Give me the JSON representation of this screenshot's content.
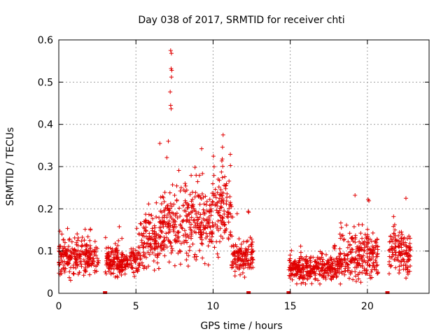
{
  "chart_data": {
    "type": "scatter",
    "title": "Day 038 of 2017, SRMTID for receiver chti",
    "xlabel": "GPS time / hours",
    "ylabel": "SRMTID / TECUs",
    "xlim": [
      0,
      24
    ],
    "ylim": [
      0,
      0.6
    ],
    "xticks": [
      "0",
      "5",
      "10",
      "15",
      "20"
    ],
    "yticks": [
      "0",
      "0.1",
      "0.2",
      "0.3",
      "0.4",
      "0.5",
      "0.6"
    ],
    "grid": true,
    "marker": "+",
    "color": "#e00000",
    "peak_points": [
      {
        "x": 7.25,
        "y": 0.575
      },
      {
        "x": 7.3,
        "y": 0.568
      },
      {
        "x": 7.28,
        "y": 0.532
      },
      {
        "x": 7.32,
        "y": 0.528
      },
      {
        "x": 7.3,
        "y": 0.512
      },
      {
        "x": 7.22,
        "y": 0.477
      },
      {
        "x": 7.25,
        "y": 0.445
      },
      {
        "x": 7.28,
        "y": 0.437
      },
      {
        "x": 10.65,
        "y": 0.375
      },
      {
        "x": 6.55,
        "y": 0.355
      },
      {
        "x": 7.1,
        "y": 0.36
      },
      {
        "x": 19.2,
        "y": 0.232
      },
      {
        "x": 20.05,
        "y": 0.222
      },
      {
        "x": 20.1,
        "y": 0.219
      },
      {
        "x": 22.5,
        "y": 0.225
      }
    ],
    "zero_markers": [
      3.0,
      12.3,
      14.9,
      21.3
    ],
    "segments": [
      {
        "start": 0.0,
        "end": 2.6,
        "base": 0.085,
        "spread": 0.03,
        "peak": 0.155
      },
      {
        "start": 3.0,
        "end": 5.2,
        "base": 0.075,
        "spread": 0.025,
        "peak": 0.16
      },
      {
        "start": 5.2,
        "end": 6.5,
        "base": 0.12,
        "spread": 0.045,
        "peak": 0.22
      },
      {
        "start": 6.5,
        "end": 8.0,
        "base": 0.16,
        "spread": 0.06,
        "peak": 0.33
      },
      {
        "start": 8.0,
        "end": 10.0,
        "base": 0.17,
        "spread": 0.07,
        "peak": 0.345
      },
      {
        "start": 10.0,
        "end": 11.2,
        "base": 0.2,
        "spread": 0.07,
        "peak": 0.35
      },
      {
        "start": 11.2,
        "end": 12.6,
        "base": 0.085,
        "spread": 0.03,
        "peak": 0.2
      },
      {
        "start": 14.9,
        "end": 18.2,
        "base": 0.06,
        "spread": 0.025,
        "peak": 0.115
      },
      {
        "start": 18.2,
        "end": 20.7,
        "base": 0.09,
        "spread": 0.045,
        "peak": 0.19
      },
      {
        "start": 21.4,
        "end": 22.8,
        "base": 0.1,
        "spread": 0.04,
        "peak": 0.19
      }
    ]
  }
}
